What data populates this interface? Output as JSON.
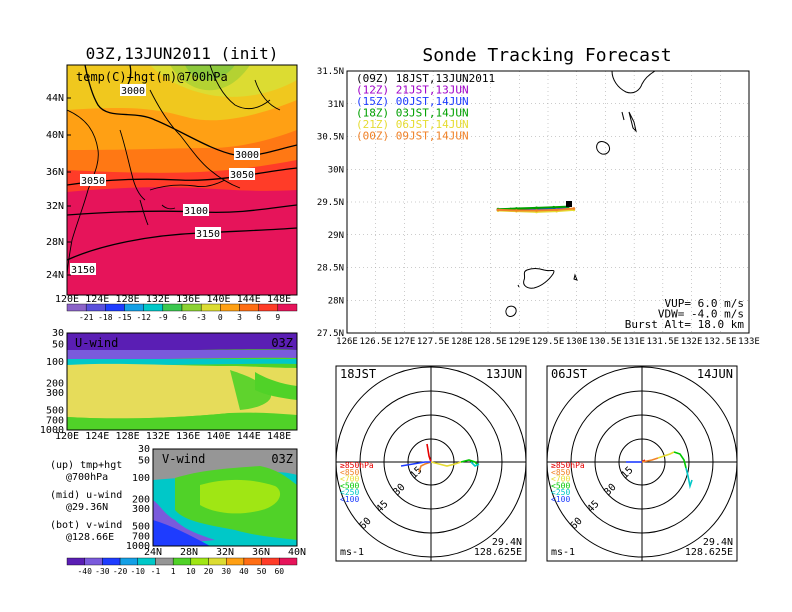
{
  "left_panel": {
    "title": "03Z,13JUN2011 (init)",
    "map_label": "temp(C)+hgt(m)@700hPa",
    "y_ticks": [
      "44N",
      "40N",
      "36N",
      "32N",
      "28N",
      "24N"
    ],
    "x_ticks": [
      "120E",
      "124E",
      "128E",
      "132E",
      "136E",
      "140E",
      "144E",
      "148E"
    ],
    "contour_labels": [
      "3000",
      "3000",
      "3050",
      "3050",
      "3100",
      "3150",
      "3150"
    ],
    "colorbar_labels": [
      "-21",
      "-18",
      "-15",
      "-12",
      "-9",
      "-6",
      "-3",
      "0",
      "3",
      "6",
      "9"
    ]
  },
  "uwind_panel": {
    "label": "U-wind",
    "time": "03Z",
    "y_ticks": [
      "30",
      "50",
      "100",
      "200",
      "300",
      "500",
      "700",
      "1000"
    ],
    "x_ticks": [
      "120E",
      "124E",
      "128E",
      "132E",
      "136E",
      "140E",
      "144E",
      "148E"
    ]
  },
  "vwind_panel": {
    "label": "V-wind",
    "time": "03Z",
    "y_ticks": [
      "30",
      "50",
      "100",
      "200",
      "300",
      "500",
      "700",
      "1000"
    ],
    "x_ticks": [
      "24N",
      "28N",
      "32N",
      "36N",
      "40N"
    ],
    "colorbar_labels": [
      "-40",
      "-30",
      "-20",
      "-10",
      "-1",
      "1",
      "10",
      "20",
      "30",
      "40",
      "50",
      "60"
    ]
  },
  "legend_notes": [
    {
      "line1": "(up) tmp+hgt",
      "line2": "@700hPa"
    },
    {
      "line1": "(mid) u-wind",
      "line2": "@29.36N"
    },
    {
      "line1": "(bot) v-wind",
      "line2": "@128.66E"
    }
  ],
  "track_panel": {
    "title": "Sonde Tracking Forecast",
    "y_ticks": [
      "31.5N",
      "31N",
      "30.5N",
      "30N",
      "29.5N",
      "29N",
      "28.5N",
      "28N",
      "27.5N"
    ],
    "x_ticks": [
      "126E",
      "126.5E",
      "127E",
      "127.5E",
      "128E",
      "128.5E",
      "129E",
      "129.5E",
      "130E",
      "130.5E",
      "131E",
      "131.5E",
      "132E",
      "132.5E",
      "133E"
    ],
    "legend": [
      {
        "text": "(09Z) 18JST,13JUN2011",
        "color": "#000000"
      },
      {
        "text": "(12Z) 21JST,13JUN",
        "color": "#a000c8"
      },
      {
        "text": "(15Z) 00JST,14JUN",
        "color": "#1e3cff"
      },
      {
        "text": "(18Z) 03JST,14JUN",
        "color": "#00a000"
      },
      {
        "text": "(21Z) 06JST,14JUN",
        "color": "#e6dc32"
      },
      {
        "text": "(00Z) 09JST,14JUN",
        "color": "#f08228"
      }
    ],
    "params": [
      "VUP= 6.0 m/s",
      "VDW= -4.0 m/s",
      "Burst Alt= 18.0 km"
    ]
  },
  "hodo_left": {
    "time": "18JST",
    "date": "13JUN",
    "ring_labels": [
      "15",
      "30",
      "45",
      "60"
    ],
    "levels": [
      {
        "text": "≥850hPa",
        "color": "#e60000"
      },
      {
        "text": "<850",
        "color": "#f08228"
      },
      {
        "text": "<700",
        "color": "#e6dc32"
      },
      {
        "text": "<500",
        "color": "#00c800"
      },
      {
        "text": "<250",
        "color": "#00c8c8"
      },
      {
        "text": "<100",
        "color": "#1e3cff"
      }
    ],
    "units": "ms-1",
    "lat": "29.4N",
    "lon": "128.625E"
  },
  "hodo_right": {
    "time": "06JST",
    "date": "14JUN",
    "ring_labels": [
      "15",
      "30",
      "45",
      "60"
    ],
    "levels": [
      {
        "text": "≥850hPa",
        "color": "#e60000"
      },
      {
        "text": "<850",
        "color": "#f08228"
      },
      {
        "text": "<700",
        "color": "#e6dc32"
      },
      {
        "text": "<500",
        "color": "#00c800"
      },
      {
        "text": "<250",
        "color": "#00c8c8"
      },
      {
        "text": "<100",
        "color": "#1e3cff"
      }
    ],
    "units": "ms-1",
    "lat": "29.4N",
    "lon": "128.625E"
  },
  "chart_data": [
    {
      "type": "heatmap",
      "title": "03Z,13JUN2011 (init)",
      "variable": "temp(C)+hgt(m)@700hPa",
      "xlim": [
        120,
        149
      ],
      "ylim": [
        22,
        47
      ],
      "x_ticks": [
        "120E",
        "124E",
        "128E",
        "132E",
        "136E",
        "140E",
        "144E",
        "148E"
      ],
      "y_ticks": [
        "44N",
        "40N",
        "36N",
        "32N",
        "28N",
        "24N"
      ],
      "color_levels": [
        -21,
        -18,
        -15,
        -12,
        -9,
        -6,
        -3,
        0,
        3,
        6,
        9
      ],
      "contours": [
        3000,
        3050,
        3100,
        3150
      ]
    },
    {
      "type": "heatmap",
      "title": "U-wind",
      "xlim": [
        120,
        149
      ],
      "y_levels_hPa": [
        30,
        50,
        100,
        200,
        300,
        500,
        700,
        1000
      ]
    },
    {
      "type": "heatmap",
      "title": "V-wind",
      "xlim": [
        24,
        40
      ],
      "y_levels_hPa": [
        30,
        50,
        100,
        200,
        300,
        500,
        700,
        1000
      ],
      "color_levels": [
        -40,
        -30,
        -20,
        -10,
        -1,
        1,
        10,
        20,
        30,
        40,
        50,
        60
      ]
    },
    {
      "type": "line",
      "title": "Sonde Tracking Forecast",
      "xlim": [
        126,
        133
      ],
      "ylim": [
        27.5,
        31.5
      ],
      "series": [
        {
          "name": "(09Z) 18JST,13JUN2011",
          "color": "#000000",
          "x": [
            128.63,
            128.85,
            129.05,
            129.25,
            129.45
          ],
          "y": [
            29.38,
            29.39,
            29.39,
            29.4,
            29.4
          ]
        },
        {
          "name": "(12Z) 21JST,13JUN",
          "color": "#a000c8",
          "x": [
            128.63,
            128.9,
            129.2,
            129.5,
            129.75
          ],
          "y": [
            29.38,
            29.37,
            29.37,
            29.38,
            29.4
          ]
        },
        {
          "name": "(15Z) 00JST,14JUN",
          "color": "#1e3cff",
          "x": [
            128.63,
            128.95,
            129.3,
            129.6,
            129.85
          ],
          "y": [
            29.38,
            29.37,
            29.38,
            29.4,
            29.42
          ]
        },
        {
          "name": "(18Z) 03JST,14JUN",
          "color": "#00a000",
          "x": [
            128.63,
            128.95,
            129.3,
            129.6,
            129.85
          ],
          "y": [
            29.39,
            29.4,
            29.41,
            29.42,
            29.43
          ]
        },
        {
          "name": "(21Z) 06JST,14JUN",
          "color": "#e6dc32",
          "x": [
            128.63,
            128.95,
            129.3,
            129.65,
            129.95
          ],
          "y": [
            29.37,
            29.36,
            29.35,
            29.36,
            29.38
          ]
        },
        {
          "name": "(00Z) 09JST,14JUN",
          "color": "#f08228",
          "x": [
            128.63,
            128.95,
            129.3,
            129.65,
            129.95
          ],
          "y": [
            29.38,
            29.37,
            29.37,
            29.38,
            29.4
          ]
        }
      ]
    }
  ]
}
